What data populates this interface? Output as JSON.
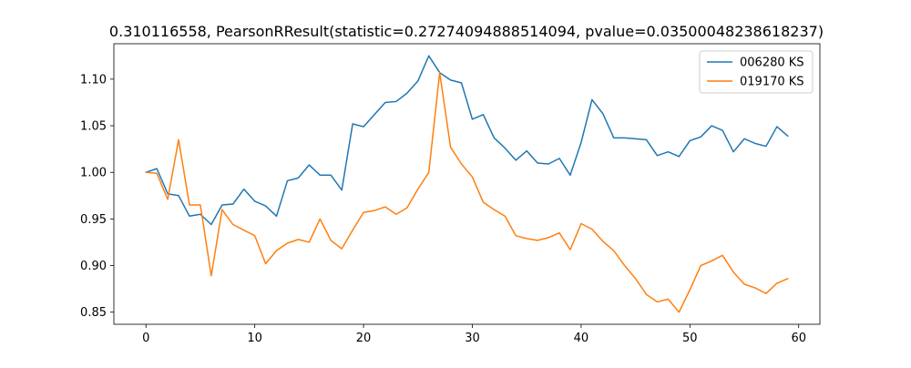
{
  "chart_data": {
    "type": "line",
    "title": "0.310116558, PearsonRResult(statistic=0.27274094888514094, pvalue=0.03500048238618237)",
    "xlabel": "",
    "ylabel": "",
    "xlim": [
      -2.95,
      61.95
    ],
    "ylim": [
      0.837,
      1.138
    ],
    "xticks": [
      0,
      10,
      20,
      30,
      40,
      50,
      60
    ],
    "xtick_labels": [
      "0",
      "10",
      "20",
      "30",
      "40",
      "50",
      "60"
    ],
    "yticks": [
      0.85,
      0.9,
      0.95,
      1.0,
      1.05,
      1.1
    ],
    "ytick_labels": [
      "0.85",
      "0.90",
      "0.95",
      "1.00",
      "1.05",
      "1.10"
    ],
    "grid": false,
    "legend_position": "top-right",
    "series": [
      {
        "name": "006280 KS",
        "color": "#1f77b4",
        "x": [
          0,
          1,
          2,
          3,
          4,
          5,
          6,
          7,
          8,
          9,
          10,
          11,
          12,
          13,
          14,
          15,
          16,
          17,
          18,
          19,
          20,
          21,
          22,
          23,
          24,
          25,
          26,
          27,
          28,
          29,
          30,
          31,
          32,
          33,
          34,
          35,
          36,
          37,
          38,
          39,
          40,
          41,
          42,
          43,
          44,
          45,
          46,
          47,
          48,
          49,
          50,
          51,
          52,
          53,
          54,
          55,
          56,
          57,
          58,
          59
        ],
        "values": [
          1.0,
          1.004,
          0.977,
          0.975,
          0.953,
          0.955,
          0.944,
          0.965,
          0.966,
          0.982,
          0.969,
          0.964,
          0.953,
          0.991,
          0.994,
          1.008,
          0.997,
          0.997,
          0.981,
          1.052,
          1.049,
          1.062,
          1.075,
          1.076,
          1.085,
          1.098,
          1.125,
          1.107,
          1.099,
          1.096,
          1.057,
          1.062,
          1.037,
          1.026,
          1.013,
          1.023,
          1.01,
          1.009,
          1.015,
          0.997,
          1.032,
          1.078,
          1.063,
          1.037,
          1.037,
          1.036,
          1.035,
          1.018,
          1.022,
          1.017,
          1.034,
          1.038,
          1.05,
          1.045,
          1.022,
          1.036,
          1.031,
          1.028,
          1.049,
          1.039
        ]
      },
      {
        "name": "019170 KS",
        "color": "#ff7f0e",
        "x": [
          0,
          1,
          2,
          3,
          4,
          5,
          6,
          7,
          8,
          9,
          10,
          11,
          12,
          13,
          14,
          15,
          16,
          17,
          18,
          19,
          20,
          21,
          22,
          23,
          24,
          25,
          26,
          27,
          28,
          29,
          30,
          31,
          32,
          33,
          34,
          35,
          36,
          37,
          38,
          39,
          40,
          41,
          42,
          43,
          44,
          45,
          46,
          47,
          48,
          49,
          50,
          51,
          52,
          53,
          54,
          55,
          56,
          57,
          58,
          59
        ],
        "values": [
          1.0,
          0.999,
          0.971,
          1.035,
          0.965,
          0.965,
          0.889,
          0.96,
          0.944,
          0.938,
          0.932,
          0.902,
          0.916,
          0.924,
          0.928,
          0.925,
          0.95,
          0.927,
          0.918,
          0.938,
          0.957,
          0.959,
          0.963,
          0.955,
          0.962,
          0.982,
          1.0,
          1.107,
          1.027,
          1.009,
          0.995,
          0.968,
          0.96,
          0.953,
          0.932,
          0.929,
          0.927,
          0.93,
          0.935,
          0.917,
          0.945,
          0.939,
          0.926,
          0.916,
          0.9,
          0.886,
          0.869,
          0.861,
          0.864,
          0.85,
          0.874,
          0.9,
          0.905,
          0.911,
          0.893,
          0.88,
          0.876,
          0.87,
          0.881,
          0.886
        ]
      }
    ]
  }
}
